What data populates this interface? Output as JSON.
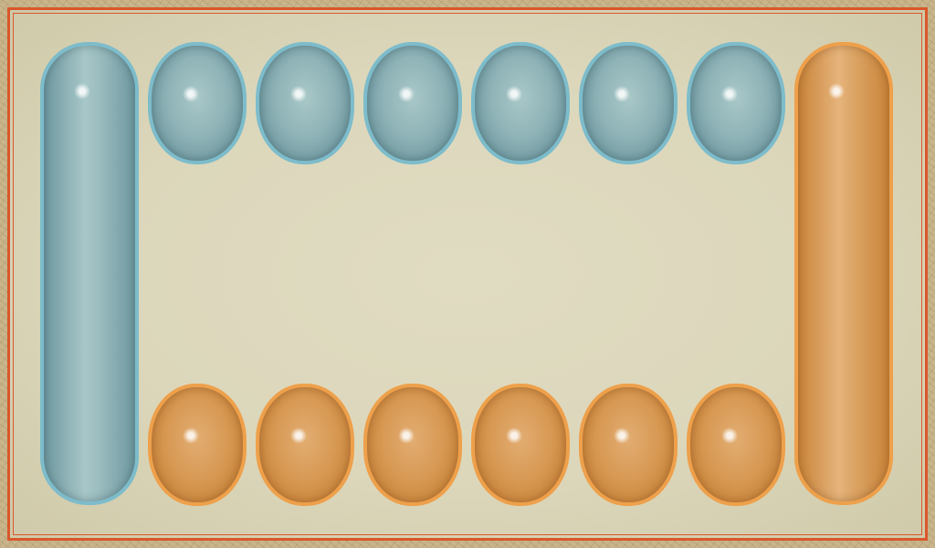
{
  "board": {
    "accent_color": "#d9572b",
    "background_color": "#dcd7bb"
  },
  "player_top": {
    "color": "#7dbccb",
    "store": {
      "seeds": ""
    },
    "pits": [
      {
        "seeds": ""
      },
      {
        "seeds": ""
      },
      {
        "seeds": ""
      },
      {
        "seeds": ""
      },
      {
        "seeds": ""
      },
      {
        "seeds": ""
      }
    ]
  },
  "player_bottom": {
    "color": "#eea04b",
    "store": {
      "seeds": ""
    },
    "pits": [
      {
        "seeds": ""
      },
      {
        "seeds": ""
      },
      {
        "seeds": ""
      },
      {
        "seeds": ""
      },
      {
        "seeds": ""
      },
      {
        "seeds": ""
      }
    ]
  }
}
